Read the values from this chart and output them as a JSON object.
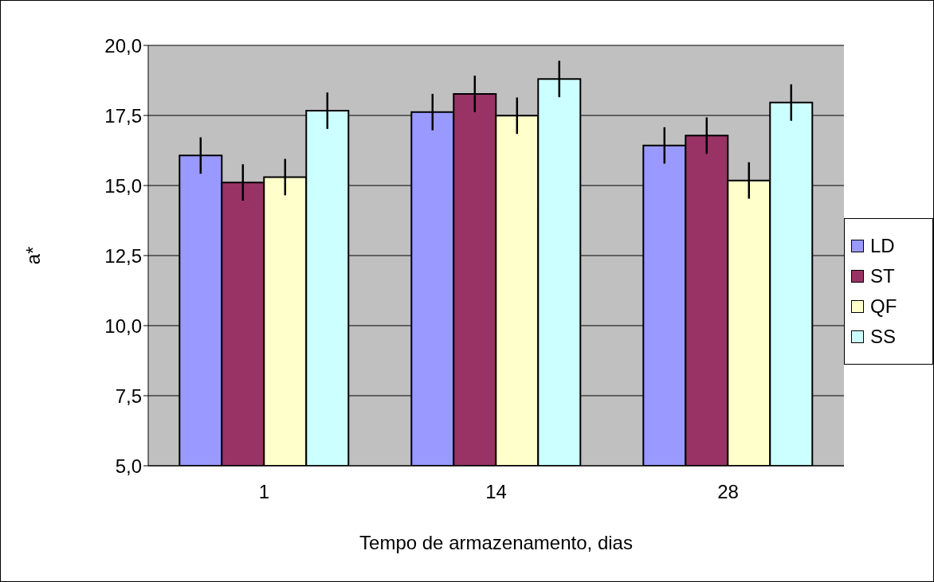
{
  "chart_data": {
    "type": "bar",
    "xlabel": "Tempo de armazenamento, dias",
    "ylabel": "a*",
    "categories": [
      "1",
      "14",
      "28"
    ],
    "series": [
      {
        "name": "LD",
        "color": "#9999ff",
        "values": [
          16.07,
          17.62,
          16.43
        ],
        "errors": [
          0.65,
          0.65,
          0.65
        ]
      },
      {
        "name": "ST",
        "color": "#993366",
        "values": [
          15.11,
          18.27,
          16.78
        ],
        "errors": [
          0.65,
          0.65,
          0.65
        ]
      },
      {
        "name": "QF",
        "color": "#ffffcc",
        "values": [
          15.3,
          17.49,
          15.18
        ],
        "errors": [
          0.65,
          0.65,
          0.65
        ]
      },
      {
        "name": "SS",
        "color": "#ccffff",
        "values": [
          17.67,
          18.8,
          17.96
        ],
        "errors": [
          0.65,
          0.65,
          0.65
        ]
      }
    ],
    "ylim": [
      5,
      20
    ],
    "yticks": [
      {
        "value": 5,
        "label": "5,0"
      },
      {
        "value": 7.5,
        "label": "7,5"
      },
      {
        "value": 10,
        "label": "10,0"
      },
      {
        "value": 12.5,
        "label": "12,5"
      },
      {
        "value": 15,
        "label": "15,0"
      },
      {
        "value": 17.5,
        "label": "17,5"
      },
      {
        "value": 20,
        "label": "20,0"
      }
    ],
    "grid": "y",
    "legend": "right"
  }
}
